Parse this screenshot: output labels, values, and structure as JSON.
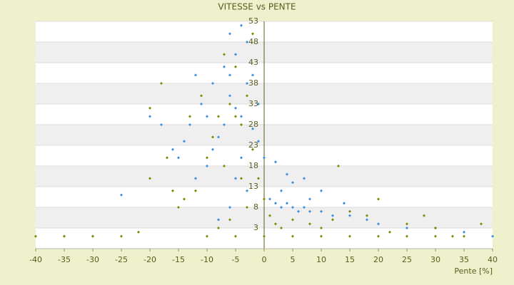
{
  "chart_data": {
    "type": "scatter",
    "title": "VITESSE vs PENTE",
    "x_label": "Pente [%]",
    "xlim": [
      -40,
      40
    ],
    "xticks": [
      -40,
      -35,
      -30,
      -25,
      -20,
      -15,
      -10,
      -5,
      0,
      5,
      10,
      15,
      20,
      25,
      30,
      35,
      40
    ],
    "ylim": [
      -2,
      53
    ],
    "yticks": [
      53,
      48,
      43,
      38,
      33,
      28,
      23,
      18,
      13,
      8,
      3
    ],
    "grid": true,
    "series": [
      {
        "name": "Series A",
        "color": "#3a8fdc",
        "x": [
          -5,
          -6,
          -4,
          -7,
          -3,
          -5,
          -6,
          -4,
          -8,
          -9,
          -10,
          -12,
          -14,
          -15,
          -13,
          -11,
          -2,
          -1,
          0,
          -3,
          -6,
          -8,
          -2,
          -7,
          -9,
          -10,
          -4,
          -5,
          1,
          2,
          3,
          4,
          5,
          6,
          7,
          8,
          10,
          12,
          15,
          18,
          20,
          25,
          30,
          35,
          40,
          3,
          5,
          8,
          14,
          -20,
          -18,
          -25,
          -30,
          -35,
          -1,
          2,
          4,
          7,
          10,
          -12,
          -16,
          -3,
          -6
        ],
        "values": [
          32,
          35,
          30,
          28,
          38,
          45,
          50,
          52,
          25,
          22,
          18,
          15,
          24,
          20,
          28,
          33,
          27,
          24,
          20,
          12,
          8,
          5,
          40,
          42,
          38,
          30,
          20,
          15,
          10,
          9,
          8,
          9,
          8,
          7,
          8,
          7,
          7,
          6,
          6,
          5,
          4,
          3,
          3,
          2,
          1,
          12,
          14,
          10,
          9,
          30,
          28,
          11,
          1,
          1,
          33,
          19,
          16,
          15,
          12,
          40,
          22,
          48,
          40
        ]
      },
      {
        "name": "Series B",
        "color": "#7f8a00",
        "x": [
          -5,
          -6,
          -4,
          -8,
          -3,
          -5,
          -7,
          -2,
          -9,
          -10,
          -12,
          -14,
          -15,
          -16,
          -20,
          -20,
          -18,
          -17,
          -11,
          -13,
          -2,
          -1,
          0,
          -6,
          -8,
          -3,
          1,
          2,
          3,
          5,
          8,
          10,
          12,
          15,
          18,
          20,
          22,
          25,
          28,
          30,
          33,
          38,
          -40,
          -35,
          -30,
          -25,
          -22,
          -10,
          -5,
          0,
          5,
          10,
          15,
          20,
          25,
          30,
          35,
          13,
          -4,
          -7
        ],
        "values": [
          30,
          33,
          28,
          30,
          35,
          42,
          45,
          50,
          25,
          20,
          12,
          10,
          8,
          12,
          15,
          32,
          38,
          20,
          35,
          30,
          22,
          15,
          10,
          5,
          3,
          8,
          6,
          4,
          3,
          5,
          4,
          3,
          5,
          7,
          6,
          10,
          2,
          4,
          6,
          3,
          1,
          4,
          1,
          1,
          1,
          1,
          2,
          1,
          1,
          1,
          1,
          1,
          1,
          1,
          1,
          1,
          1,
          18,
          15,
          18
        ]
      }
    ]
  }
}
